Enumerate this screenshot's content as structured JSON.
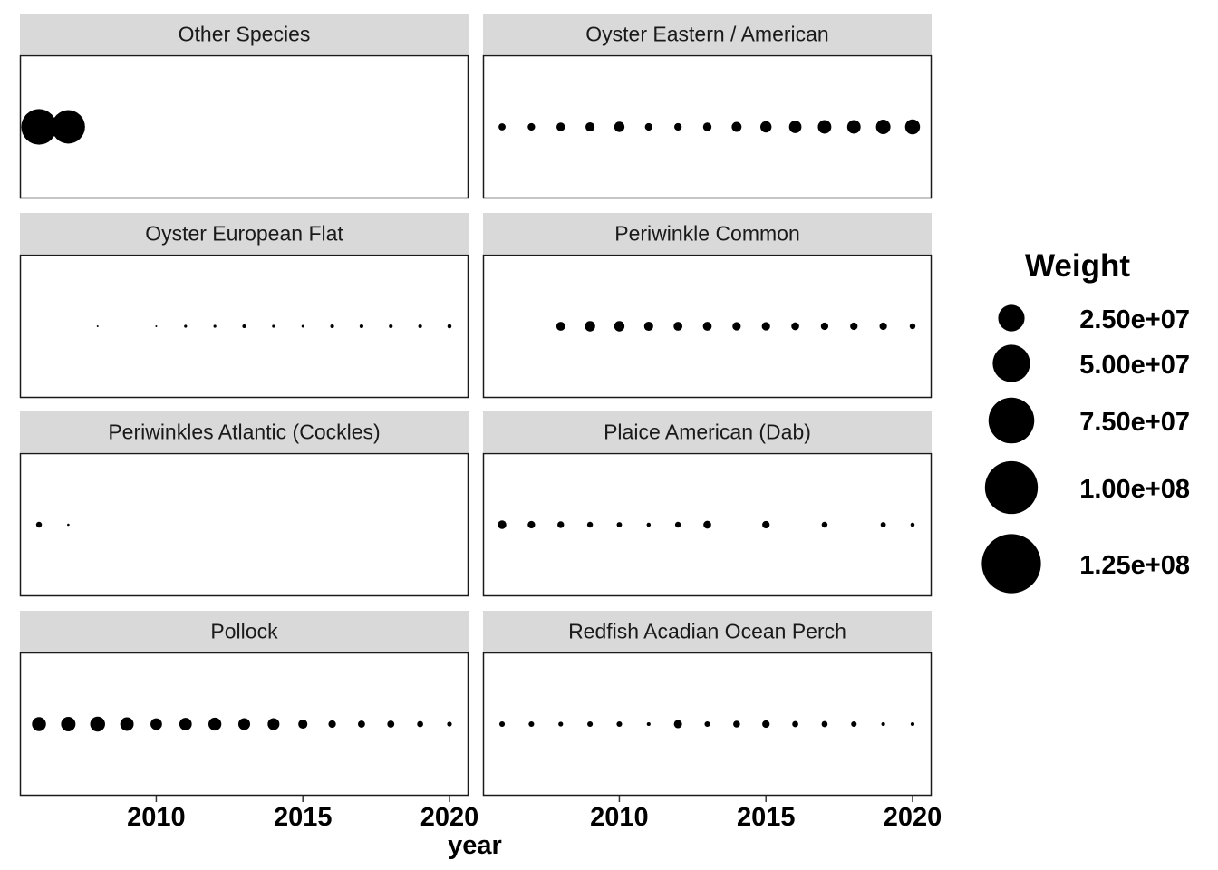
{
  "chart_data": {
    "type": "scatter",
    "facet_layout": {
      "ncol": 2,
      "nrow": 4
    },
    "xlabel": "year",
    "ylabel": "",
    "xlim": [
      2005.35,
      2020.65
    ],
    "xticks": [
      2010,
      2015,
      2020
    ],
    "legend": {
      "title": "Weight",
      "placement": "right",
      "breaks": [
        25000000,
        50000000,
        75000000,
        100000000,
        125000000
      ],
      "labels": [
        "2.50e+07",
        "5.00e+07",
        "7.50e+07",
        "1.00e+08",
        "1.25e+08"
      ]
    },
    "size_scale": {
      "min_value": 0,
      "max_value": 128000000
    },
    "point_color": "#000000",
    "panels": [
      {
        "title": "Other Species",
        "x": [
          2006,
          2007
        ],
        "weight": [
          45000000,
          40000000
        ]
      },
      {
        "title": "Oyster Eastern / American",
        "x": [
          2006,
          2007,
          2008,
          2009,
          2010,
          2011,
          2012,
          2013,
          2014,
          2015,
          2016,
          2017,
          2018,
          2019,
          2020
        ],
        "weight": [
          1800000,
          2000000,
          2600000,
          3000000,
          3800000,
          2000000,
          2000000,
          2600000,
          3500000,
          4500000,
          5500000,
          6500000,
          6500000,
          7500000,
          8000000
        ]
      },
      {
        "title": "Oyster European Flat",
        "x": [
          2008,
          2010,
          2011,
          2012,
          2013,
          2014,
          2015,
          2016,
          2017,
          2018,
          2019,
          2020
        ],
        "weight": [
          100000,
          120000,
          300000,
          300000,
          500000,
          300000,
          250000,
          500000,
          500000,
          500000,
          500000,
          600000
        ]
      },
      {
        "title": "Periwinkle Common",
        "x": [
          2008,
          2009,
          2010,
          2011,
          2012,
          2013,
          2014,
          2015,
          2016,
          2017,
          2018,
          2019,
          2020
        ],
        "weight": [
          2800000,
          3800000,
          3800000,
          3000000,
          2800000,
          2800000,
          2500000,
          2500000,
          2200000,
          2000000,
          2000000,
          2000000,
          1200000
        ]
      },
      {
        "title": "Periwinkles Atlantic (Cockles)",
        "x": [
          2006,
          2007
        ],
        "weight": [
          1200000,
          200000
        ]
      },
      {
        "title": "Plaice American (Dab)",
        "x": [
          2006,
          2007,
          2008,
          2009,
          2010,
          2011,
          2012,
          2013,
          2015,
          2017,
          2019,
          2020
        ],
        "weight": [
          2600000,
          2000000,
          1600000,
          1200000,
          1000000,
          600000,
          1200000,
          2200000,
          2000000,
          1200000,
          1000000,
          600000
        ]
      },
      {
        "title": "Pollock",
        "x": [
          2006,
          2007,
          2008,
          2009,
          2010,
          2011,
          2012,
          2013,
          2014,
          2015,
          2016,
          2017,
          2018,
          2019,
          2020
        ],
        "weight": [
          7000000,
          7500000,
          8000000,
          6500000,
          4800000,
          5500000,
          6000000,
          5000000,
          5000000,
          3000000,
          2000000,
          1800000,
          1800000,
          1300000,
          800000
        ]
      },
      {
        "title": "Redfish Acadian Ocean Perch",
        "x": [
          2006,
          2007,
          2008,
          2009,
          2010,
          2011,
          2012,
          2013,
          2014,
          2015,
          2016,
          2017,
          2018,
          2019,
          2020
        ],
        "weight": [
          1100000,
          1100000,
          800000,
          1100000,
          1100000,
          500000,
          2400000,
          1100000,
          1700000,
          2000000,
          1300000,
          1300000,
          1100000,
          500000,
          500000
        ]
      }
    ]
  }
}
